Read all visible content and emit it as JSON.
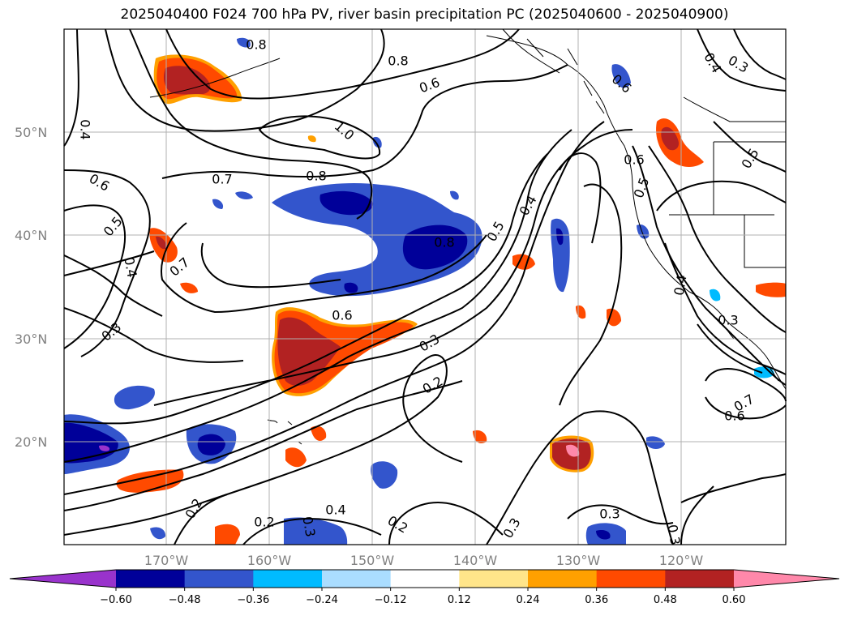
{
  "title": "2025040400 F024 700 hPa PV, river basin precipitation PC (2025040600 - 2025040900)",
  "map": {
    "lat_labels": [
      "50°N",
      "40°N",
      "30°N",
      "20°N"
    ],
    "lon_labels": [
      "170°W",
      "160°W",
      "150°W",
      "140°W",
      "130°W",
      "120°W"
    ],
    "contour_labels": [
      "0.8",
      "0.8",
      "0.6",
      "0.3",
      "0.4",
      "0.6",
      "1.0",
      "0.8",
      "0.7",
      "0.6",
      "0.5",
      "0.4",
      "0.7",
      "0.6",
      "0.5",
      "0.8",
      "0.4",
      "0.3",
      "0.3",
      "0.2",
      "0.6",
      "0.5",
      "0.4",
      "0.3",
      "0.7",
      "0.6",
      "0.2",
      "0.2",
      "0.3",
      "0.4",
      "0.2",
      "0.3",
      "0.3",
      "0.3",
      "0.5",
      "0.4"
    ],
    "colors": {
      "purple": "#9933cc",
      "navy": "#000099",
      "blue": "#3355cc",
      "cyan": "#00bbff",
      "lightblue": "#aaddff",
      "white": "#ffffff",
      "yellow": "#ffe58a",
      "orange": "#ffa000",
      "redorange": "#ff4a00",
      "darkred": "#b22222",
      "pink": "#ff88aa"
    }
  },
  "colorbar": {
    "ticks": [
      "−0.60",
      "−0.48",
      "−0.36",
      "−0.24",
      "−0.12",
      "0.12",
      "0.24",
      "0.36",
      "0.48",
      "0.60"
    ],
    "colors": [
      "#9933cc",
      "#000099",
      "#3355cc",
      "#00bbff",
      "#aaddff",
      "#ffffff",
      "#ffe58a",
      "#ffa000",
      "#ff4a00",
      "#b22222",
      "#ff88aa"
    ]
  }
}
